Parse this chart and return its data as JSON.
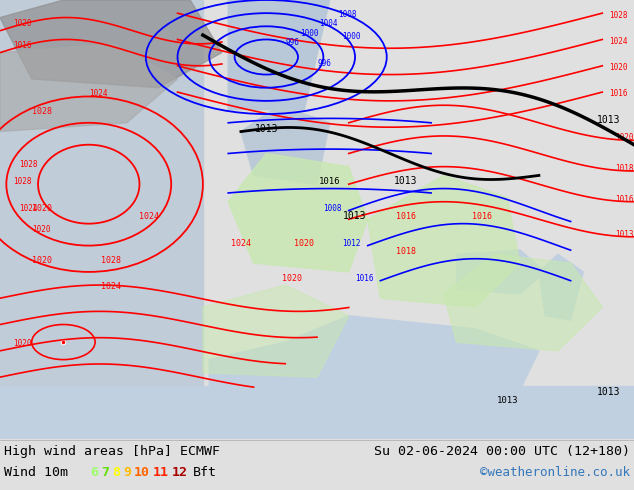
{
  "title_left": "High wind areas [hPa] ECMWF",
  "title_right": "Su 02-06-2024 00:00 UTC (12+180)",
  "subtitle_left": "Wind 10m",
  "legend_numbers": [
    "6",
    "7",
    "8",
    "9",
    "10",
    "11",
    "12"
  ],
  "legend_colors": [
    "#99ff66",
    "#66dd00",
    "#ffff00",
    "#ffbb00",
    "#ff6600",
    "#ff2200",
    "#aa0000"
  ],
  "legend_suffix": "Bft",
  "credit": "©weatheronline.co.uk",
  "caption_bg": "#e0e0e0",
  "fig_width": 6.34,
  "fig_height": 4.9,
  "dpi": 100,
  "land_color": "#b8d4a8",
  "sea_color": "#c8d8e8",
  "atlantic_color": "#c0ccd8",
  "med_color": "#c0d0e0",
  "wind_light_green": "#c8e8b0",
  "wind_green": "#a0d880",
  "wind_dark_green": "#80c060"
}
